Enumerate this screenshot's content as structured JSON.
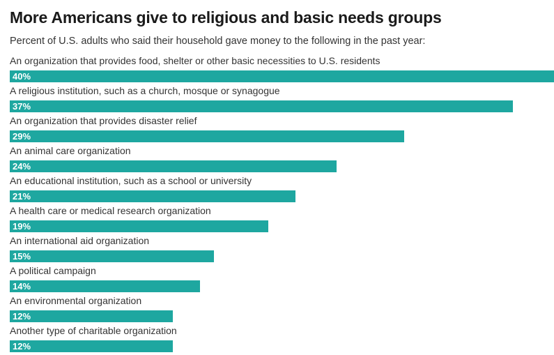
{
  "title": "More Americans give to religious and basic needs groups",
  "subtitle": "Percent of U.S. adults who said their household gave money to the following in the past year:",
  "colors": {
    "bar": "#1ea7a0"
  },
  "chart_data": {
    "type": "bar",
    "orientation": "horizontal",
    "categories": [
      "An organization that provides food, shelter or other basic necessities to U.S. residents",
      "A religious institution, such as a church, mosque or synagogue",
      "An organization that provides disaster relief",
      "An animal care organization",
      "An educational institution, such as a school or university",
      "A health care or medical research organization",
      "An international aid organization",
      "A political campaign",
      "An environmental organization",
      "Another type of charitable organization"
    ],
    "values": [
      40,
      37,
      29,
      24,
      21,
      19,
      15,
      14,
      12,
      12
    ],
    "value_labels": [
      "40%",
      "37%",
      "29%",
      "24%",
      "21%",
      "19%",
      "15%",
      "14%",
      "12%",
      "12%"
    ],
    "unit": "%",
    "xlim": [
      0,
      40
    ],
    "grid": false
  }
}
